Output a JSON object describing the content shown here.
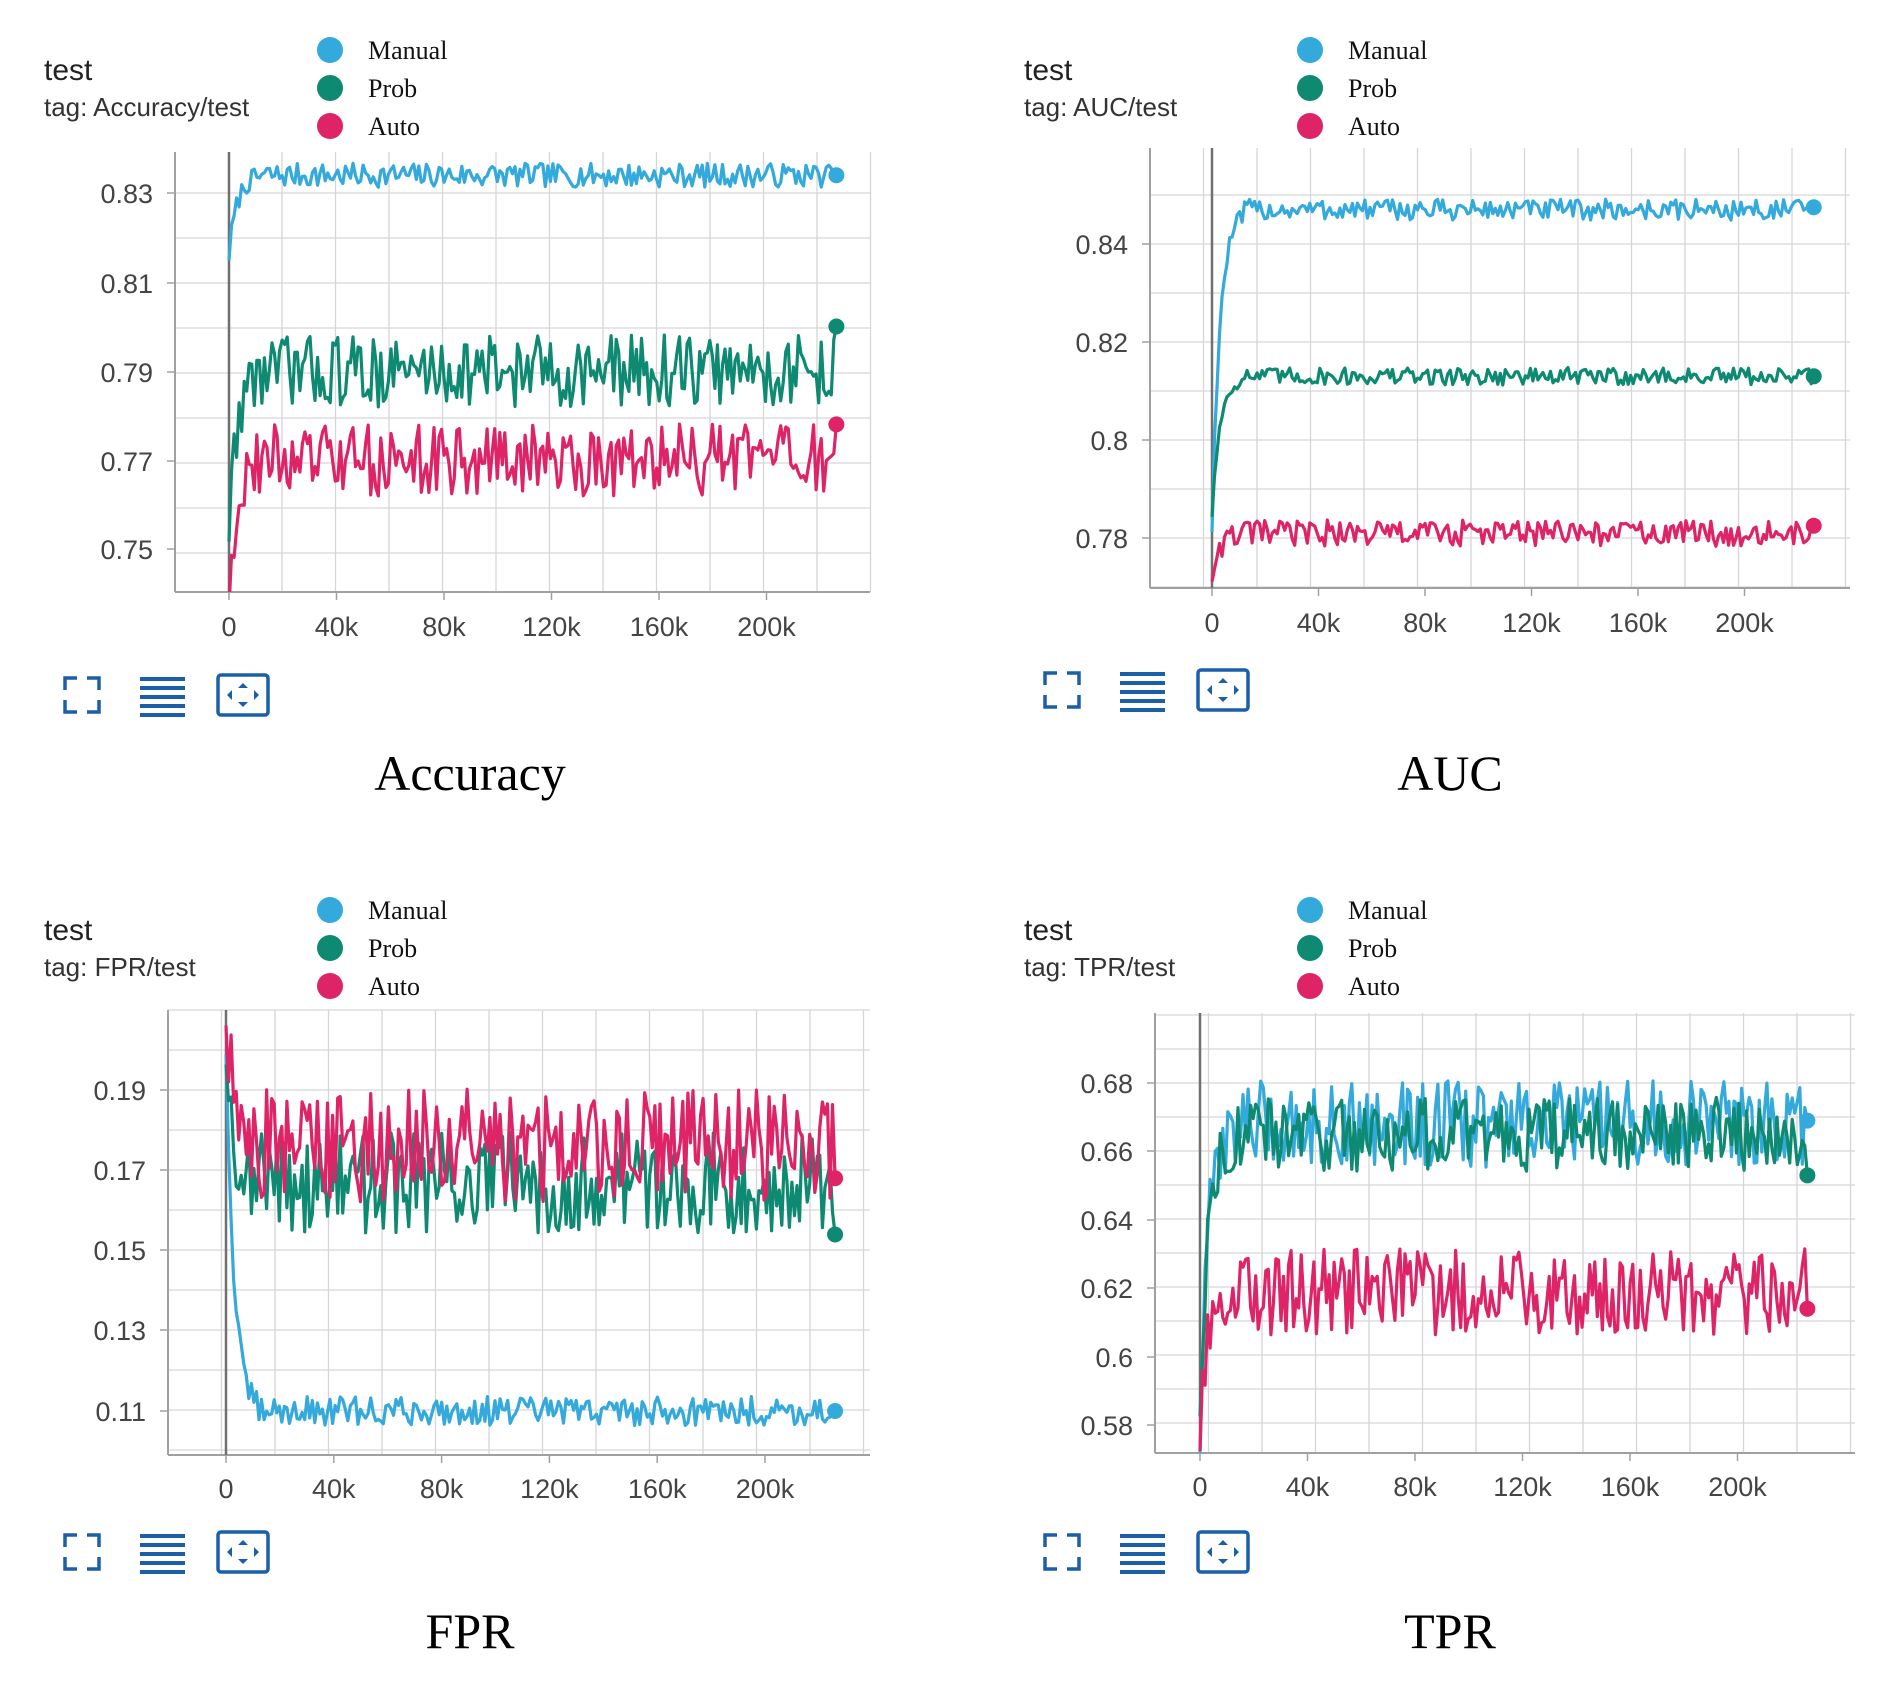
{
  "colors": {
    "manual": "#33a9dc",
    "prob": "#0e8a72",
    "auto": "#de2367",
    "grid": "#d6d6d6",
    "axis": "#a0a0a0",
    "icon": "#1a5fa8"
  },
  "legend": [
    "Manual",
    "Prob",
    "Auto"
  ],
  "icons": [
    "fullscreen-icon",
    "data-list-icon",
    "fit-domain-icon"
  ],
  "chart_data": [
    {
      "type": "line",
      "title": "test",
      "subtitle": "tag: Accuracy/test",
      "caption": "Accuracy",
      "x_ticks": [
        "0",
        "40k",
        "80k",
        "120k",
        "160k",
        "200k"
      ],
      "y_ticks": [
        "0.83",
        "0.81",
        "0.79",
        "0.77",
        "0.75"
      ],
      "xlim": [
        -20000,
        240000
      ],
      "ylim": [
        0.739,
        0.839
      ],
      "grid": true,
      "legend_position": "top",
      "series": [
        {
          "name": "Manual",
          "key": "manual",
          "start": 0.816,
          "level": 0.834,
          "noise": 0.0015,
          "final": 0.834
        },
        {
          "name": "Prob",
          "key": "prob",
          "start": 0.755,
          "level": 0.79,
          "noise": 0.0045,
          "final": 0.8
        },
        {
          "name": "Auto",
          "key": "auto",
          "start": 0.74,
          "level": 0.77,
          "noise": 0.0045,
          "final": 0.778
        }
      ]
    },
    {
      "type": "line",
      "title": "test",
      "subtitle": "tag: AUC/test",
      "caption": "AUC",
      "x_ticks": [
        "0",
        "40k",
        "80k",
        "120k",
        "160k",
        "200k"
      ],
      "y_ticks": [
        "0.84",
        "0.82",
        "0.8",
        "0.78"
      ],
      "xlim": [
        -20000,
        240000
      ],
      "ylim": [
        0.771,
        0.86
      ],
      "grid": true,
      "legend_position": "top",
      "series": [
        {
          "name": "Manual",
          "key": "manual",
          "start": 0.782,
          "level": 0.847,
          "noise": 0.0012,
          "final": 0.8475
        },
        {
          "name": "Prob",
          "key": "prob",
          "start": 0.785,
          "level": 0.813,
          "noise": 0.001,
          "final": 0.813
        },
        {
          "name": "Auto",
          "key": "auto",
          "start": 0.772,
          "level": 0.781,
          "noise": 0.0015,
          "final": 0.7825
        }
      ]
    },
    {
      "type": "line",
      "title": "test",
      "subtitle": "tag: FPR/test",
      "caption": "FPR",
      "x_ticks": [
        "0",
        "40k",
        "80k",
        "120k",
        "160k",
        "200k"
      ],
      "y_ticks": [
        "0.19",
        "0.17",
        "0.15",
        "0.13",
        "0.11"
      ],
      "xlim": [
        -20000,
        240000
      ],
      "ylim": [
        0.1,
        0.21
      ],
      "grid": true,
      "legend_position": "top",
      "series": [
        {
          "name": "Manual",
          "key": "manual",
          "start": 0.2,
          "level": 0.11,
          "noise": 0.002,
          "final": 0.11
        },
        {
          "name": "Prob",
          "key": "prob",
          "start": 0.2,
          "level": 0.167,
          "noise": 0.007,
          "final": 0.154
        },
        {
          "name": "Auto",
          "key": "auto",
          "start": 0.21,
          "level": 0.176,
          "noise": 0.008,
          "final": 0.168
        }
      ]
    },
    {
      "type": "line",
      "title": "test",
      "subtitle": "tag: TPR/test",
      "caption": "TPR",
      "x_ticks": [
        "0",
        "40k",
        "80k",
        "120k",
        "160k",
        "200k"
      ],
      "y_ticks": [
        "0.68",
        "0.66",
        "0.64",
        "0.62",
        "0.6",
        "0.58"
      ],
      "xlim": [
        -20000,
        240000
      ],
      "ylim": [
        0.572,
        0.694
      ],
      "grid": true,
      "legend_position": "top",
      "series": [
        {
          "name": "Manual",
          "key": "manual",
          "start": 0.575,
          "level": 0.668,
          "noise": 0.007,
          "final": 0.669
        },
        {
          "name": "Prob",
          "key": "prob",
          "start": 0.585,
          "level": 0.665,
          "noise": 0.006,
          "final": 0.653
        },
        {
          "name": "Auto",
          "key": "auto",
          "start": 0.575,
          "level": 0.619,
          "noise": 0.007,
          "final": 0.614
        }
      ]
    }
  ]
}
